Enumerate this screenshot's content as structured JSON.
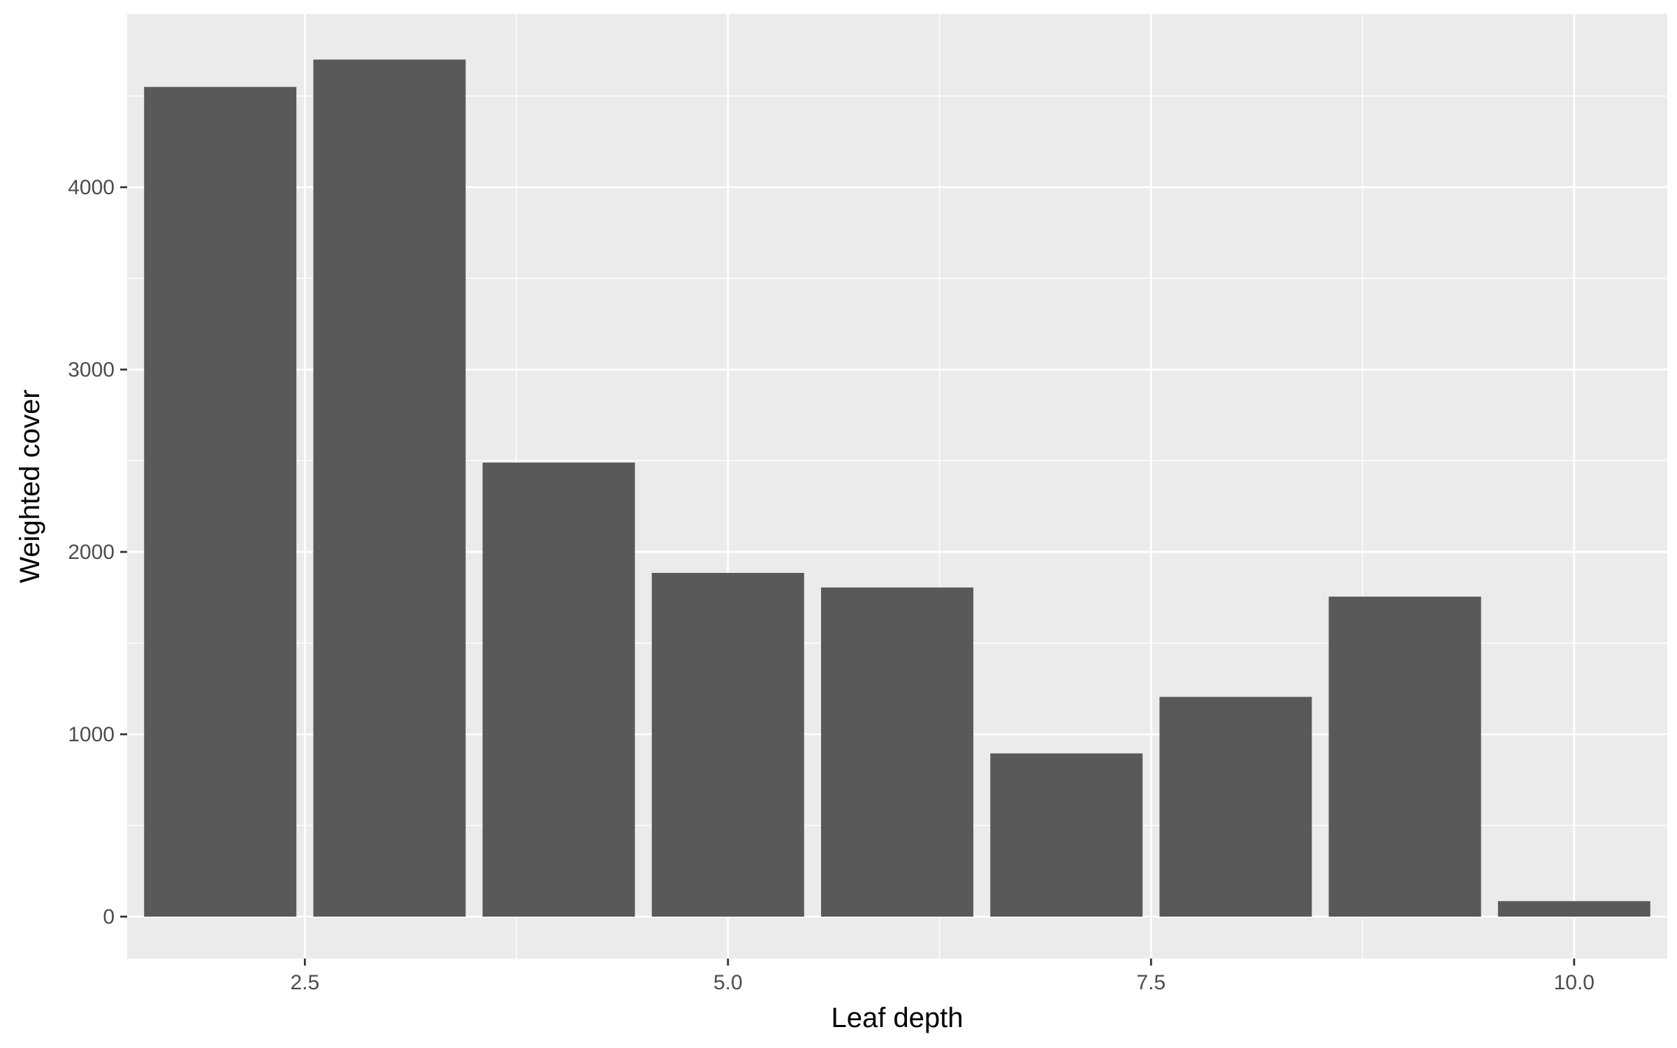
{
  "chart_data": {
    "type": "bar",
    "x": [
      2,
      3,
      4,
      5,
      6,
      7,
      8,
      9,
      10
    ],
    "values": [
      4550,
      4700,
      2490,
      1885,
      1805,
      895,
      1205,
      1755,
      85
    ],
    "xlabel": "Leaf depth",
    "ylabel": "Weighted cover",
    "xlim": [
      1.45,
      10.55
    ],
    "ylim": [
      -230,
      4950
    ],
    "x_ticks": [
      2.5,
      5.0,
      7.5,
      10.0
    ],
    "x_tick_labels": [
      "2.5",
      "5.0",
      "7.5",
      "10.0"
    ],
    "y_ticks": [
      0,
      1000,
      2000,
      3000,
      4000
    ],
    "y_tick_labels": [
      "0",
      "1000",
      "2000",
      "3000",
      "4000"
    ],
    "grid": true,
    "colors": {
      "panel": "#ebebeb",
      "bar": "#595959",
      "grid": "#ffffff",
      "tick": "#333333"
    }
  }
}
